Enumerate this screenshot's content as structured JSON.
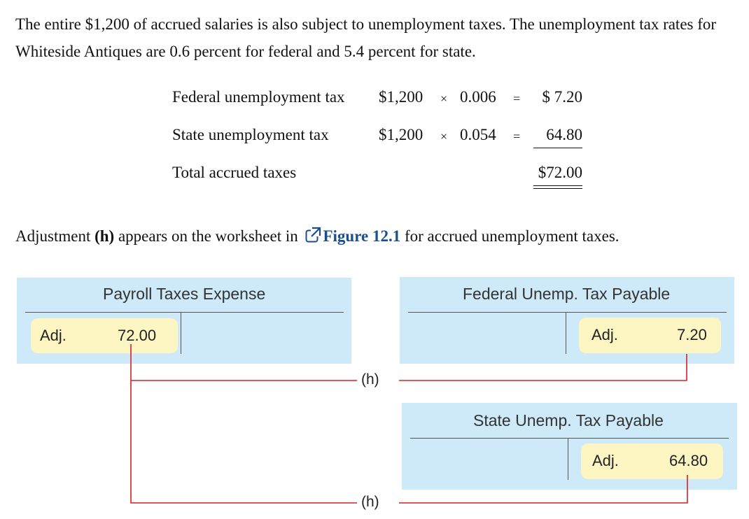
{
  "intro": "The entire $1,200 of accrued salaries is also subject to unemployment taxes. The unemployment tax rates for Whiteside Antiques are 0.6 percent for federal and 5.4 percent for state.",
  "calculation": {
    "rows": [
      {
        "label": "Federal unemployment tax",
        "base": "$1,200",
        "times": "×",
        "rate": "0.006",
        "equals": "=",
        "result": "$ 7.20"
      },
      {
        "label": "State unemployment tax",
        "base": "$1,200",
        "times": "×",
        "rate": "0.054",
        "equals": "=",
        "result": "64.80"
      }
    ],
    "total_label": "Total accrued taxes",
    "total_value": "$72.00"
  },
  "adjustment_text": {
    "before": "Adjustment ",
    "bold": "(h)",
    "middle": " appears on the worksheet in ",
    "link": "Figure 12.1",
    "after": " for accrued unemployment taxes."
  },
  "t_accounts": {
    "payroll": {
      "title": "Payroll Taxes Expense",
      "label": "Adj.",
      "amount": "72.00"
    },
    "federal": {
      "title": "Federal Unemp. Tax Payable",
      "label": "Adj.",
      "amount": "7.20"
    },
    "state": {
      "title": "State Unemp. Tax Payable",
      "label": "Adj.",
      "amount": "64.80"
    }
  },
  "flow_labels": {
    "first": "(h)",
    "second": "(h)"
  },
  "colors": {
    "panel": "#ceeaf9",
    "pill": "#fdf5c2",
    "connector": "#d42027",
    "link": "#1a4f8b"
  }
}
